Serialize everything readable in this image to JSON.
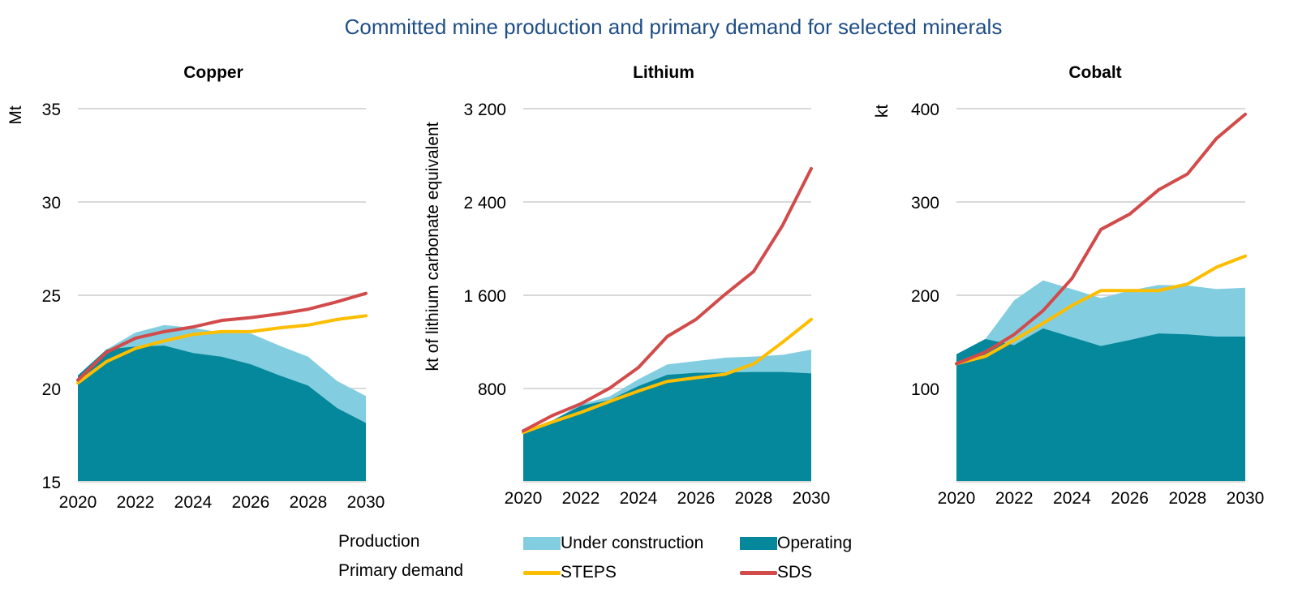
{
  "title": "Committed mine production and primary demand for selected minerals",
  "legend": {
    "row_production": "Production",
    "row_demand": "Primary demand",
    "items": [
      {
        "key": "under_construction",
        "label": "Under construction",
        "type": "area",
        "color": "#82cee0"
      },
      {
        "key": "operating",
        "label": "Operating",
        "type": "area",
        "color": "#05889c"
      },
      {
        "key": "steps",
        "label": "STEPS",
        "type": "line",
        "color": "#fdbd00"
      },
      {
        "key": "sds",
        "label": "SDS",
        "type": "line",
        "color": "#d24b4b"
      }
    ]
  },
  "chart_data": [
    {
      "type": "area",
      "title": "Copper",
      "xlabel": "",
      "ylabel": "Mt",
      "x": [
        2020,
        2021,
        2022,
        2023,
        2024,
        2025,
        2026,
        2027,
        2028,
        2029,
        2030
      ],
      "xticks": [
        "2020",
        "2022",
        "2024",
        "2026",
        "2028",
        "2030"
      ],
      "ylim": [
        15,
        35
      ],
      "yticks": [
        15,
        20,
        25,
        30,
        35
      ],
      "ytick_labels": [
        "15",
        "20",
        "25",
        "30",
        "35"
      ],
      "grid": true,
      "series": [
        {
          "name": "Operating",
          "kind": "area",
          "color": "#05889c",
          "values": [
            20.7,
            22.1,
            22.25,
            22.3,
            21.9,
            21.7,
            21.3,
            20.7,
            20.15,
            18.95,
            18.15
          ]
        },
        {
          "name": "Under construction",
          "kind": "area",
          "color": "#82cee0",
          "values": [
            20.7,
            22.1,
            23.0,
            23.4,
            23.25,
            23.0,
            22.95,
            22.3,
            21.7,
            20.4,
            19.6
          ]
        },
        {
          "name": "STEPS",
          "kind": "line",
          "color": "#fdbd00",
          "values": [
            20.3,
            21.45,
            22.15,
            22.55,
            22.9,
            23.05,
            23.05,
            23.25,
            23.4,
            23.7,
            23.9
          ]
        },
        {
          "name": "SDS",
          "kind": "line",
          "color": "#d24b4b",
          "values": [
            20.45,
            21.95,
            22.7,
            23.05,
            23.3,
            23.65,
            23.8,
            24.0,
            24.25,
            24.65,
            25.1
          ]
        }
      ]
    },
    {
      "type": "area",
      "title": "Lithium",
      "xlabel": "",
      "ylabel": "kt of lithium carbonate equivalent",
      "x": [
        2020,
        2021,
        2022,
        2023,
        2024,
        2025,
        2026,
        2027,
        2028,
        2029,
        2030
      ],
      "xticks": [
        "2020",
        "2022",
        "2024",
        "2026",
        "2028",
        "2030"
      ],
      "ylim": [
        0,
        3200
      ],
      "yticks": [
        0,
        800,
        1600,
        2400,
        3200
      ],
      "ytick_labels": [
        "",
        "800",
        "1 600",
        "2 400",
        "3 200"
      ],
      "grid": true,
      "series": [
        {
          "name": "Operating",
          "kind": "area",
          "color": "#05889c",
          "values": [
            423,
            524,
            651,
            702,
            821,
            917,
            935,
            937,
            942,
            942,
            930
          ]
        },
        {
          "name": "Under construction",
          "kind": "area",
          "color": "#82cee0",
          "values": [
            423,
            524,
            664,
            732,
            879,
            1006,
            1036,
            1064,
            1074,
            1089,
            1133
          ]
        },
        {
          "name": "STEPS",
          "kind": "line",
          "color": "#fdbd00",
          "values": [
            423,
            512,
            595,
            689,
            778,
            861,
            892,
            922,
            1011,
            1196,
            1393
          ]
        },
        {
          "name": "SDS",
          "kind": "line",
          "color": "#d24b4b",
          "values": [
            436,
            567,
            669,
            803,
            980,
            1246,
            1393,
            1606,
            1804,
            2197,
            2686
          ]
        }
      ]
    },
    {
      "type": "area",
      "title": "Cobalt",
      "xlabel": "",
      "ylabel": "kt",
      "x": [
        2020,
        2021,
        2022,
        2023,
        2024,
        2025,
        2026,
        2027,
        2028,
        2029,
        2030
      ],
      "xticks": [
        "2020",
        "2022",
        "2024",
        "2026",
        "2028",
        "2030"
      ],
      "ylim": [
        0,
        400
      ],
      "yticks": [
        0,
        100,
        200,
        300,
        400
      ],
      "ytick_labels": [
        "",
        "100",
        "200",
        "300",
        "400"
      ],
      "grid": true,
      "series": [
        {
          "name": "Operating",
          "kind": "area",
          "color": "#05889c",
          "values": [
            136.7,
            153,
            146.5,
            164.5,
            155,
            145.5,
            152,
            159,
            158,
            155.7,
            155.7
          ]
        },
        {
          "name": "Under construction",
          "kind": "area",
          "color": "#82cee0",
          "values": [
            136.7,
            153,
            194.6,
            216,
            206.6,
            197,
            205,
            211,
            210.4,
            206.6,
            208
          ]
        },
        {
          "name": "STEPS",
          "kind": "line",
          "color": "#fdbd00",
          "values": [
            126.6,
            134.5,
            152,
            170,
            189,
            205,
            205,
            205,
            212,
            230,
            242
          ]
        },
        {
          "name": "SDS",
          "kind": "line",
          "color": "#d24b4b",
          "values": [
            126.6,
            139,
            158,
            183.5,
            218,
            270.5,
            287,
            313,
            330,
            368,
            394
          ]
        }
      ]
    }
  ]
}
